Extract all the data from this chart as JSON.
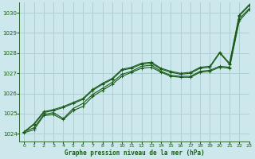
{
  "title": "Graphe pression niveau de la mer (hPa)",
  "bg_color": "#cde8ec",
  "grid_color": "#aacccc",
  "line_color": "#1a5c1a",
  "spine_color": "#336633",
  "xlim": [
    -0.5,
    23
  ],
  "ylim": [
    1023.6,
    1030.5
  ],
  "yticks": [
    1024,
    1025,
    1026,
    1027,
    1028,
    1029,
    1030
  ],
  "xticks": [
    0,
    1,
    2,
    3,
    4,
    5,
    6,
    7,
    8,
    9,
    10,
    11,
    12,
    13,
    14,
    15,
    16,
    17,
    18,
    19,
    20,
    21,
    22,
    23
  ],
  "series": [
    [
      1024.1,
      1024.3,
      1024.95,
      1025.05,
      1024.75,
      1025.25,
      1025.5,
      1025.95,
      1026.25,
      1026.55,
      1026.95,
      1027.1,
      1027.35,
      1027.4,
      1027.1,
      1026.9,
      1026.85,
      1026.85,
      1027.1,
      1027.15,
      1027.35,
      1027.3,
      1029.7,
      1030.2
    ],
    [
      1024.05,
      1024.2,
      1024.9,
      1024.95,
      1024.7,
      1025.15,
      1025.35,
      1025.85,
      1026.15,
      1026.45,
      1026.85,
      1027.05,
      1027.25,
      1027.3,
      1027.05,
      1026.85,
      1026.8,
      1026.8,
      1027.05,
      1027.1,
      1027.3,
      1027.25,
      1029.6,
      1030.15
    ],
    [
      1024.1,
      1024.5,
      1025.1,
      1025.2,
      1025.35,
      1025.55,
      1025.75,
      1026.2,
      1026.5,
      1026.75,
      1027.2,
      1027.3,
      1027.5,
      1027.55,
      1027.25,
      1027.1,
      1027.0,
      1027.05,
      1027.3,
      1027.35,
      1028.05,
      1027.5,
      1029.9,
      1030.4
    ],
    [
      1024.1,
      1024.45,
      1025.05,
      1025.15,
      1025.3,
      1025.5,
      1025.7,
      1026.15,
      1026.45,
      1026.7,
      1027.15,
      1027.25,
      1027.45,
      1027.5,
      1027.2,
      1027.05,
      1026.95,
      1027.0,
      1027.25,
      1027.3,
      1028.0,
      1027.45,
      1029.85,
      1030.35
    ]
  ]
}
